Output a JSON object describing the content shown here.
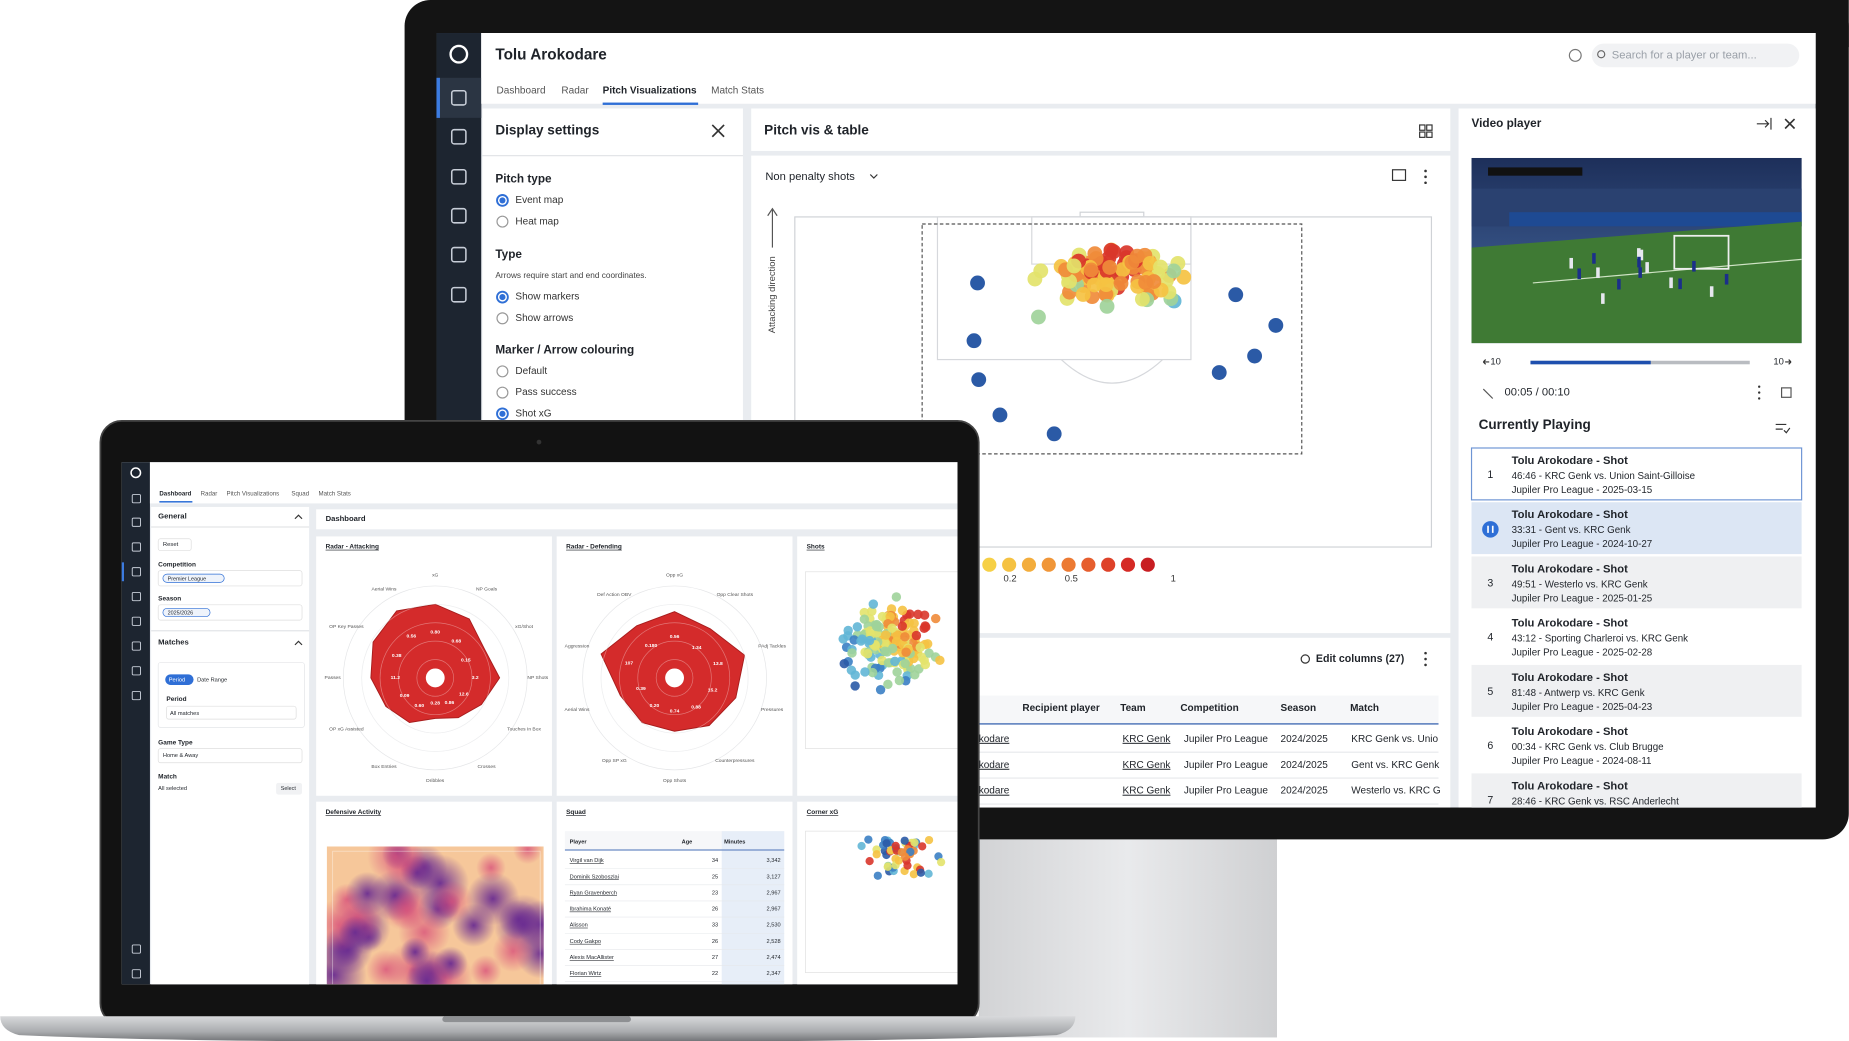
{
  "monitor": {
    "header": {
      "title": "Tolu Arokodare",
      "search_placeholder": "Search for a player or team..."
    },
    "tabs": {
      "items": [
        "Dashboard",
        "Radar",
        "Pitch Visualizations",
        "Match Stats"
      ],
      "active": 2
    },
    "display_settings": {
      "title": "Display settings",
      "sections": [
        {
          "title": "Pitch type",
          "options": [
            "Event map",
            "Heat map"
          ],
          "selected": 0
        },
        {
          "title": "Type",
          "note": "Arrows require start and end coordinates.",
          "options": [
            "Show markers",
            "Show arrows"
          ],
          "selected": 0
        },
        {
          "title": "Marker / Arrow colouring",
          "options": [
            "Default",
            "Pass success",
            "Shot xG"
          ],
          "selected": 2
        }
      ]
    },
    "pitch_panel": {
      "title": "Pitch vis & table",
      "filter": "Non penalty shots",
      "axis_label": "Attacking direction",
      "legend_ticks": [
        0.2,
        0.5,
        1
      ],
      "legend_colors": [
        "#f6d046",
        "#f5c242",
        "#f3ad3c",
        "#f09638",
        "#ec7a33",
        "#e65e2e",
        "#de4229",
        "#d52a25",
        "#c81e22"
      ]
    },
    "table": {
      "edit_columns": "Edit columns (27)",
      "columns": [
        "Recipient player",
        "Team",
        "Competition",
        "Season",
        "Match"
      ],
      "rows": [
        [
          "kodare",
          "KRC Genk",
          "Jupiler Pro League",
          "2024/2025",
          "KRC Genk vs. Unio"
        ],
        [
          "kodare",
          "KRC Genk",
          "Jupiler Pro League",
          "2024/2025",
          "Gent vs. KRC Genk"
        ],
        [
          "kodare",
          "KRC Genk",
          "Jupiler Pro League",
          "2024/2025",
          "Westerlo vs. KRC G"
        ]
      ]
    },
    "video": {
      "title": "Video player",
      "skip_back": "10",
      "skip_forward": "10",
      "time": "00:05 / 00:10",
      "playlist_title": "Currently Playing",
      "items": [
        {
          "number": "1",
          "title": "Tolu Arokodare - Shot",
          "detail": "46:46 - KRC Genk vs. Union Saint-Gilloise",
          "meta": "Jupiler Pro League - 2025-03-15"
        },
        {
          "title": "Tolu Arokodare - Shot",
          "detail": "33:31 - Gent vs. KRC Genk",
          "meta": "Jupiler Pro League - 2024-10-27"
        },
        {
          "number": "3",
          "title": "Tolu Arokodare - Shot",
          "detail": "49:51 - Westerlo vs. KRC Genk",
          "meta": "Jupiler Pro League - 2025-01-25"
        },
        {
          "number": "4",
          "title": "Tolu Arokodare - Shot",
          "detail": "43:12 - Sporting Charleroi vs. KRC Genk",
          "meta": "Jupiler Pro League - 2025-02-28"
        },
        {
          "number": "5",
          "title": "Tolu Arokodare - Shot",
          "detail": "81:48 - Antwerp vs. KRC Genk",
          "meta": "Jupiler Pro League - 2025-04-23"
        },
        {
          "number": "6",
          "title": "Tolu Arokodare - Shot",
          "detail": "00:34 - KRC Genk vs. Club Brugge",
          "meta": "Jupiler Pro League - 2024-08-11"
        },
        {
          "number": "7",
          "title": "Tolu Arokodare - Shot",
          "detail": "28:46 - KRC Genk vs. RSC Anderlecht"
        }
      ]
    }
  },
  "laptop": {
    "tabs": [
      "Dashboard",
      "Radar",
      "Pitch Visualizations",
      "Squad",
      "Match Stats"
    ],
    "filters": {
      "general": "General",
      "reset": "Reset",
      "competition_label": "Competition",
      "competition": "Premier League",
      "season_label": "Season",
      "season": "2025/2026",
      "matches": "Matches",
      "period_tab": "Period",
      "date_range_tab": "Date Range",
      "period_label": "Period",
      "period": "All matches",
      "game_type_label": "Game Type",
      "game_type": "Home & Away",
      "match_label": "Match",
      "match": "All selected",
      "select": "Select"
    },
    "dashboard_title": "Dashboard",
    "cards": [
      "Radar - Attacking",
      "Radar - Defending",
      "Shots",
      "Defensive Activity",
      "Squad",
      "Corner xG"
    ],
    "radar_attacking": [
      {
        "label": "xG",
        "value_label": "0.80",
        "percentile": 80
      },
      {
        "label": "NP Goals",
        "value_label": "0.68",
        "percentile": 74
      },
      {
        "label": "xG/Shot",
        "value_label": "0.15",
        "percentile": 62
      },
      {
        "label": "NP Shots",
        "value_label": "3.2",
        "percentile": 70
      },
      {
        "label": "Touches In Box",
        "value_label": "12.6",
        "percentile": 58
      },
      {
        "label": "Crosses",
        "value_label": "0.86",
        "percentile": 50
      },
      {
        "label": "Dribbles",
        "value_label": "0.28",
        "percentile": 44
      },
      {
        "label": "Box Entries",
        "value_label": "0.60",
        "percentile": 56
      },
      {
        "label": "OP xG Assisted",
        "value_label": "0.09",
        "percentile": 62
      },
      {
        "label": "Passes",
        "value_label": "11.2",
        "percentile": 70
      },
      {
        "label": "OP Key Passes",
        "value_label": "0.38",
        "percentile": 78
      },
      {
        "label": "Aerial Wins",
        "value_label": "0.56",
        "percentile": 84
      }
    ],
    "radar_defending": [
      {
        "label": "Opp xG",
        "value_label": "0.56",
        "percentile": 72
      },
      {
        "label": "Opp Clear Shots",
        "value_label": "1.34",
        "percentile": 66
      },
      {
        "label": "PAdj Tackles",
        "value_label": "13.8",
        "percentile": 80
      },
      {
        "label": "Pressures",
        "value_label": "15.2",
        "percentile": 70
      },
      {
        "label": "Counterpressures",
        "value_label": "0.88",
        "percentile": 64
      },
      {
        "label": "Opp Shots",
        "value_label": "0.74",
        "percentile": 58
      },
      {
        "label": "Opp SP xG",
        "value_label": "0.20",
        "percentile": 60
      },
      {
        "label": "Aerial Wins",
        "value_label": "0.39",
        "percentile": 62
      },
      {
        "label": "Aggression",
        "value_label": "107",
        "percentile": 84
      },
      {
        "label": "Def Action OBV",
        "value_label": "0.180",
        "percentile": 70
      }
    ],
    "squad": {
      "columns": [
        "Player",
        "Age",
        "Minutes"
      ],
      "rows": [
        [
          "Virgil van Dijk",
          34,
          "3,342"
        ],
        [
          "Dominik Szoboszlai",
          25,
          "3,127"
        ],
        [
          "Ryan Gravenberch",
          23,
          "2,967"
        ],
        [
          "Ibrahima Konaté",
          26,
          "2,967"
        ],
        [
          "Alisson",
          33,
          "2,530"
        ],
        [
          "Cody Gakpo",
          26,
          "2,528"
        ],
        [
          "Alexis MacAllister",
          27,
          "2,474"
        ],
        [
          "Florian Wirtz",
          22,
          "2,347"
        ]
      ]
    }
  }
}
